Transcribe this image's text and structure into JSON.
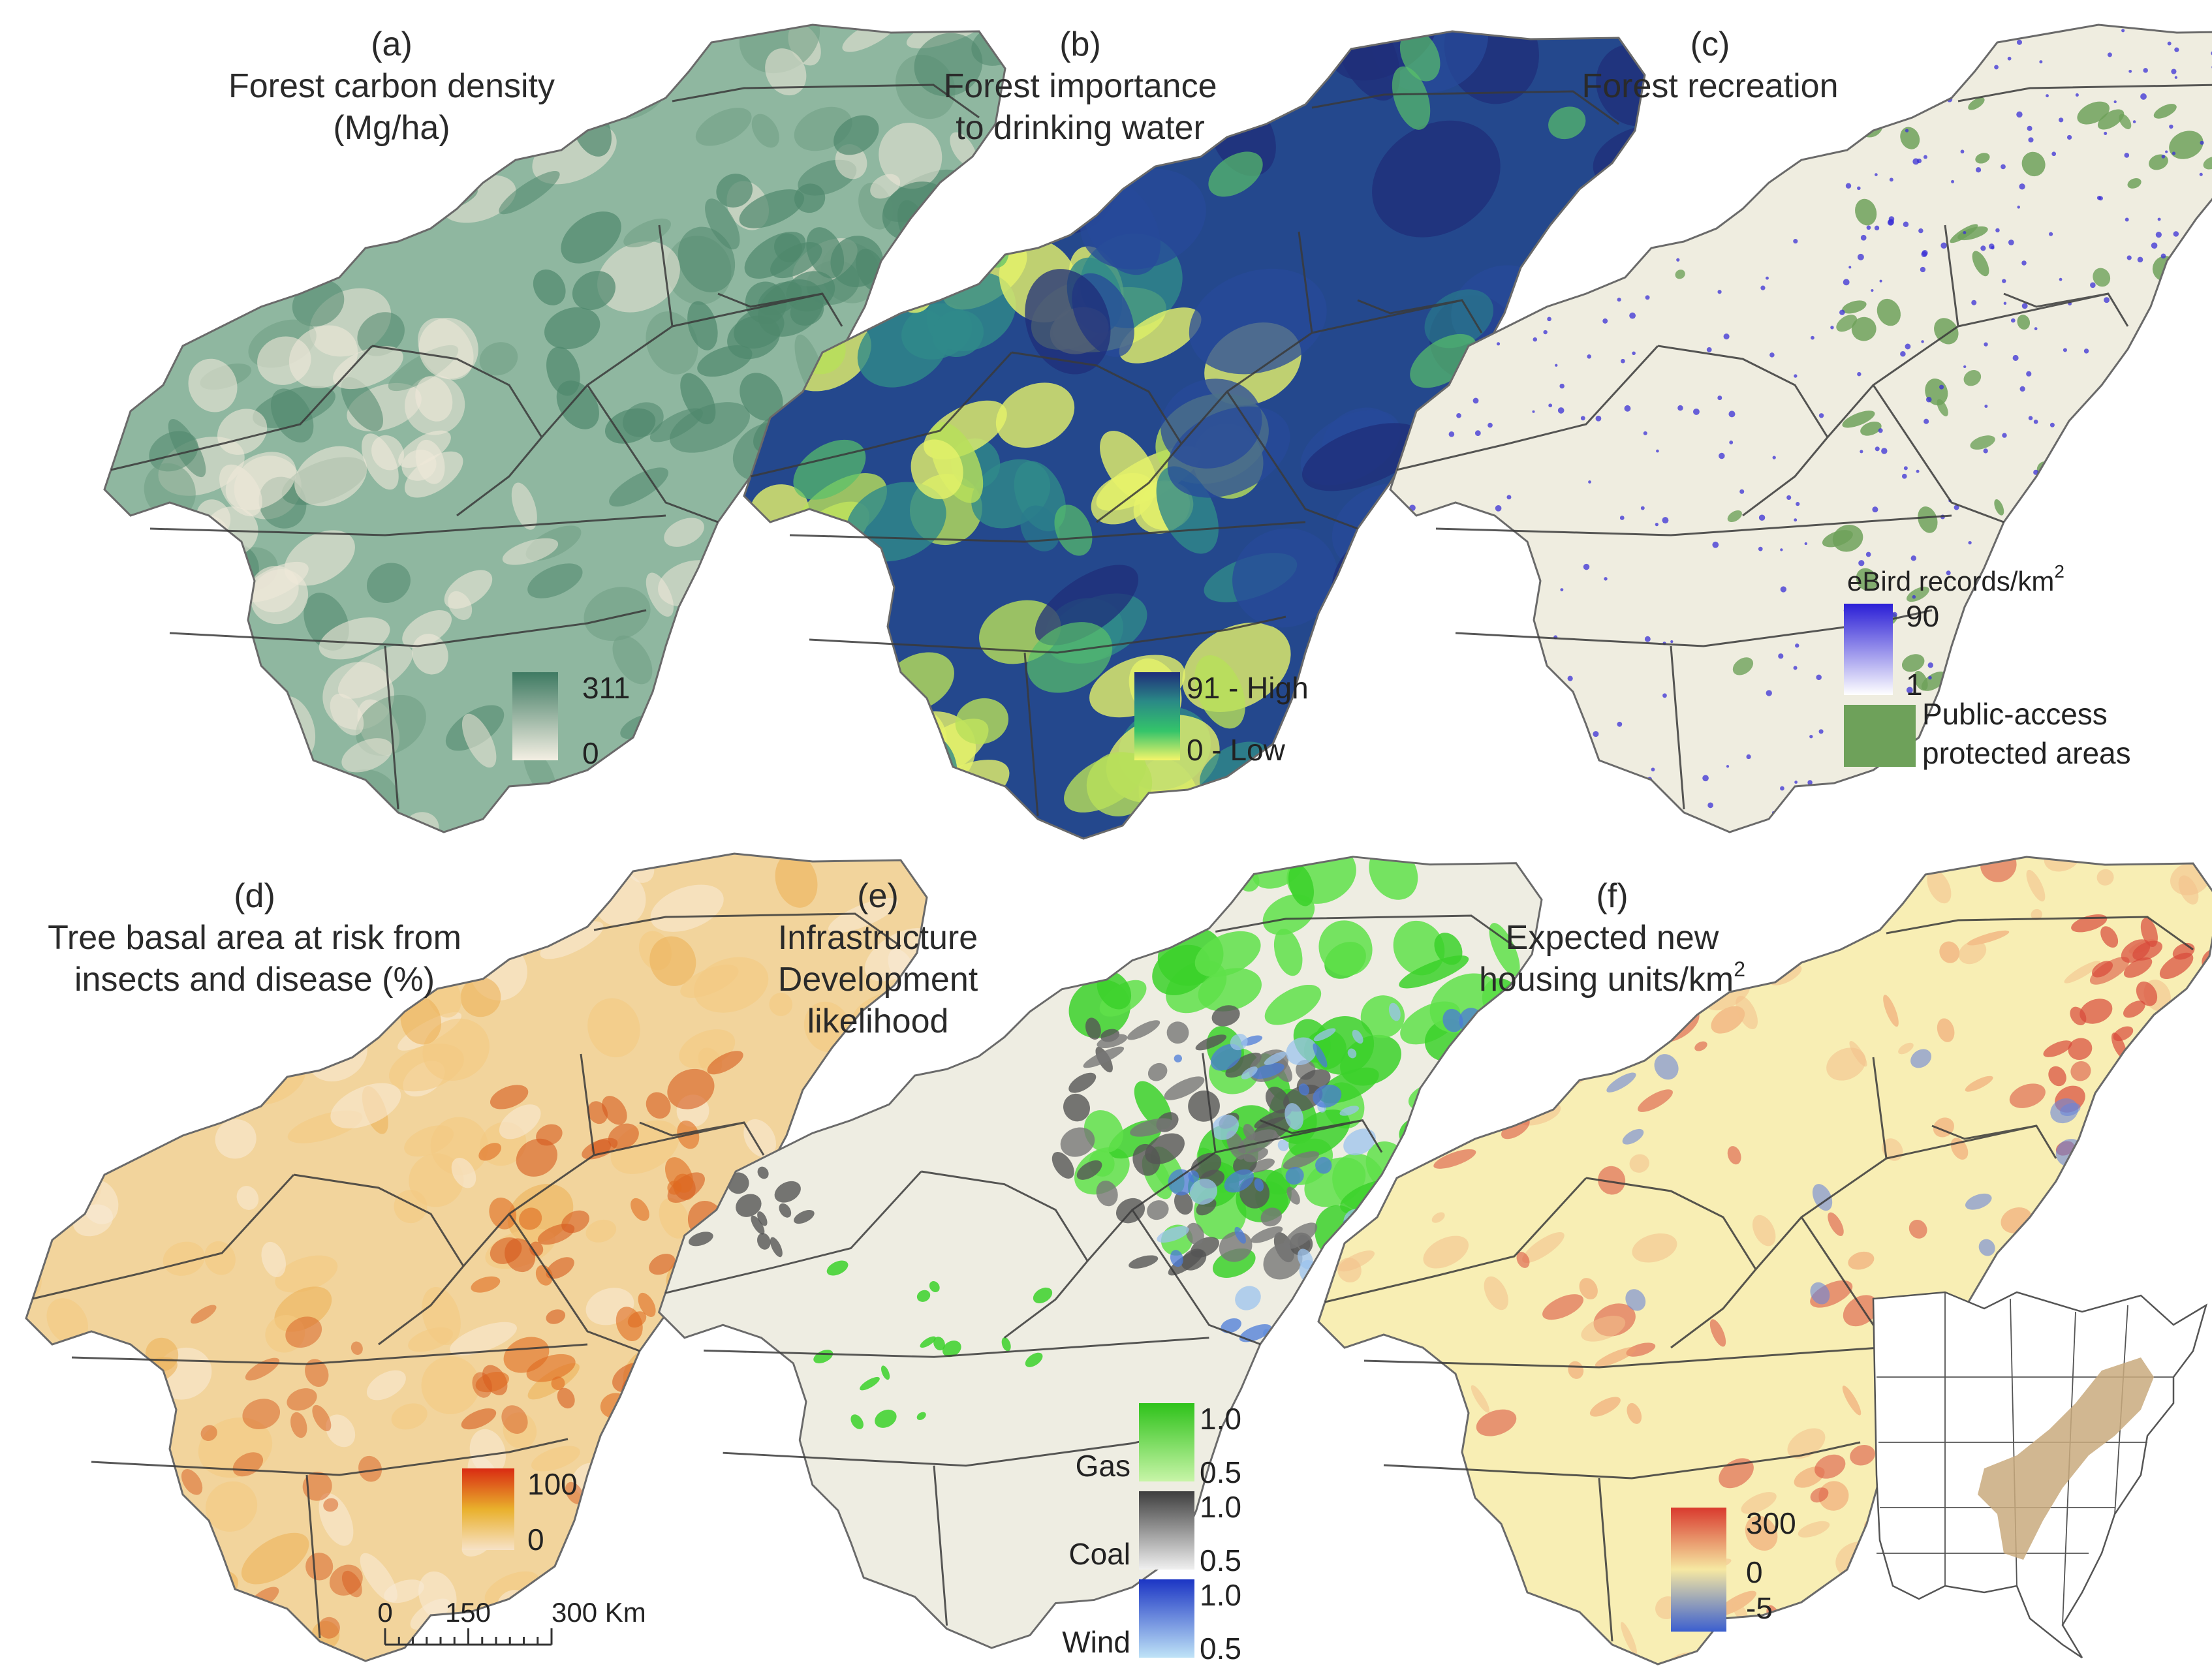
{
  "panels": [
    {
      "id": "a",
      "letter": "(a)",
      "title_lines": [
        "Forest carbon density",
        "(Mg/ha)"
      ],
      "legend": {
        "max": "311",
        "min": "0",
        "colors": [
          "#3e7a62",
          "#f4efe3"
        ]
      }
    },
    {
      "id": "b",
      "letter": "(b)",
      "title_lines": [
        "Forest importance",
        "to drinking water"
      ],
      "legend": {
        "max": "91 - High",
        "min": "0 - Low",
        "colors": [
          "#1f2e7a",
          "#2a8a86",
          "#34c46a",
          "#f4f56a"
        ]
      }
    },
    {
      "id": "c",
      "letter": "(c)",
      "title_lines": [
        "Forest recreation"
      ],
      "legend": {
        "heading": "eBird records/km",
        "heading_sup": "2",
        "max": "90",
        "min": "1",
        "colors": [
          "#2a1ed6",
          "#ffffff"
        ],
        "protected_lines": [
          "Public-access",
          "protected areas"
        ],
        "protected_color": "#6ea15a"
      }
    },
    {
      "id": "d",
      "letter": "(d)",
      "title_lines": [
        "Tree basal area at risk from",
        "insects and disease (%)"
      ],
      "legend": {
        "max": "100",
        "min": "0",
        "colors": [
          "#d92b12",
          "#e9b02c",
          "#f7e2c7"
        ]
      }
    },
    {
      "id": "e",
      "letter": "(e)",
      "title_lines": [
        "Infrastructure",
        "Development",
        "likelihood"
      ],
      "legend": {
        "groups": [
          {
            "name": "Gas",
            "max": "1.0",
            "min": "0.5",
            "colors": [
              "#2ec21a",
              "#c8f5a8"
            ]
          },
          {
            "name": "Coal",
            "max": "1.0",
            "min": "0.5",
            "colors": [
              "#3e3e3e",
              "#f0f0f0"
            ]
          },
          {
            "name": "Wind",
            "max": "1.0",
            "min": "0.5",
            "colors": [
              "#1b35c4",
              "#bfe3f7"
            ]
          }
        ]
      }
    },
    {
      "id": "f",
      "letter": "(f)",
      "title_lines": [
        "Expected new",
        "housing units/km"
      ],
      "title_sup": "2",
      "legend": {
        "max": "300",
        "mid": "0",
        "min": "-5",
        "colors": [
          "#d93a2e",
          "#f6e8a2",
          "#3b5fcf"
        ]
      }
    }
  ],
  "scale_bar": {
    "labels": [
      "0",
      "150",
      "300 Km"
    ]
  },
  "colors": {
    "a_fill": "#8fb7a0",
    "a_dark": "#4f876c",
    "a_light": "#eee8d8",
    "b_fill": "#24488d",
    "b_dark": "#1f2e7a",
    "b_light": "#b8e05a",
    "b_yellow": "#e6f26a",
    "c_fill": "#efede0",
    "c_dot": "#3a2fd6",
    "c_green": "#6ea15a",
    "d_fill": "#f2d49c",
    "d_dark": "#d65a1e",
    "d_light": "#f8ead3",
    "e_fill": "#eeede2",
    "e_gas": "#3bd12a",
    "e_coal": "#555555",
    "e_wind": "#4b7bd8",
    "f_fill": "#f8eeb4",
    "f_red": "#d84a3a",
    "f_blue": "#6a86d8",
    "boundary": "#3a3a3a"
  },
  "inset_map": {
    "states_color": "#555555",
    "region_color": "#c9aa7e"
  }
}
